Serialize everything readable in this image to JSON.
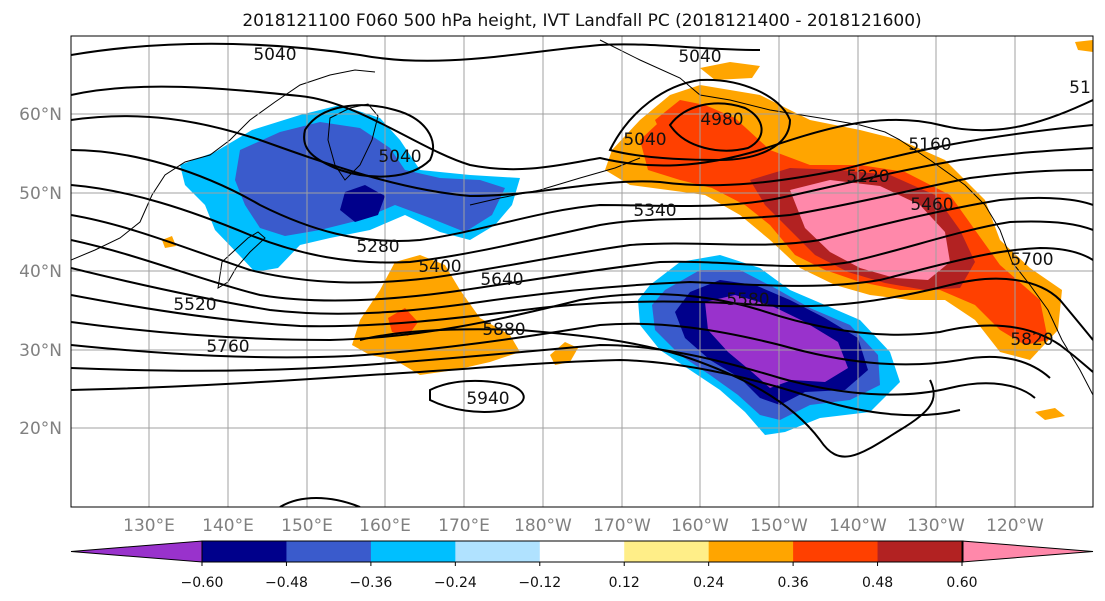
{
  "title": "2018121100 F060 500 hPa height, IVT Landfall PC (2018121400 - 2018121600)",
  "map": {
    "lat_labels": [
      "20°N",
      "30°N",
      "40°N",
      "50°N",
      "60°N"
    ],
    "lon_labels": [
      "130°E",
      "140°E",
      "150°E",
      "160°E",
      "170°E",
      "180°W",
      "170°W",
      "160°W",
      "150°W",
      "140°W",
      "130°W",
      "120°W"
    ],
    "contour_labels": [
      "5040",
      "5040",
      "5040",
      "5040",
      "4980",
      "5220",
      "5160",
      "5280",
      "5340",
      "5400",
      "5460",
      "5520",
      "5580",
      "5640",
      "5700",
      "5760",
      "5820",
      "5880",
      "5940",
      "51"
    ]
  },
  "colorbar": {
    "ticks": [
      "−0.60",
      "−0.48",
      "−0.36",
      "−0.24",
      "−0.12",
      "0.12",
      "0.24",
      "0.36",
      "0.48",
      "0.60"
    ],
    "colors": [
      "#9932cc",
      "#00008b",
      "#3a5bcc",
      "#00bfff",
      "#b0e2ff",
      "#ffffff",
      "#ffee88",
      "#ffa500",
      "#ff4000",
      "#b22222",
      "#ff88aa"
    ]
  }
}
